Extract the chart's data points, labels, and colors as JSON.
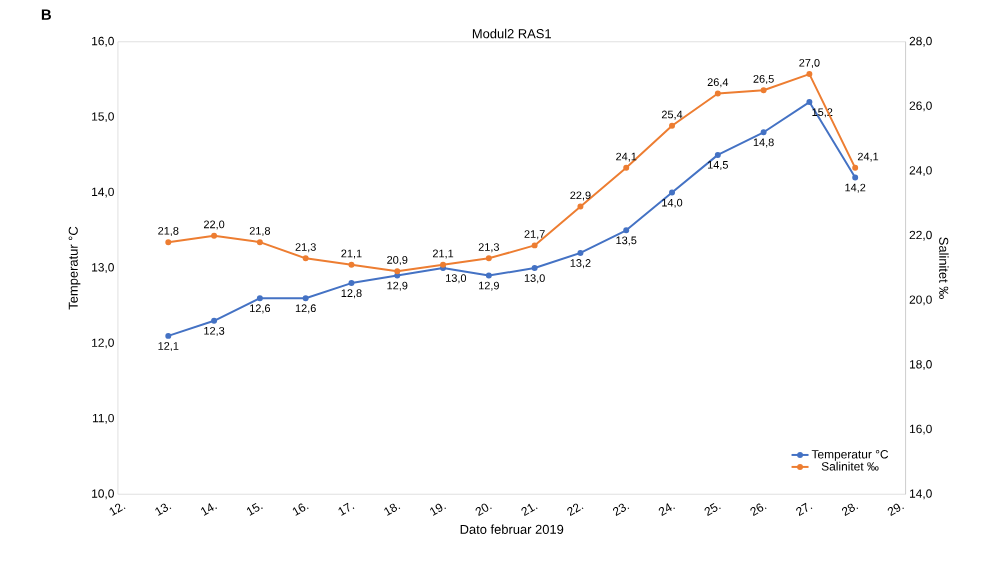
{
  "chart_data": {
    "type": "line",
    "title": "Modul2 RAS1",
    "xlabel": "Dato februar 2019",
    "ylabel": "Temperatur °C",
    "y2label": "Salinitet ‰",
    "annotations": [
      "B"
    ],
    "categories": [
      "12.",
      "13.",
      "14.",
      "15.",
      "16.",
      "17.",
      "18.",
      "19.",
      "20.",
      "21.",
      "22.",
      "23.",
      "24.",
      "25.",
      "26.",
      "27.",
      "28.",
      "29."
    ],
    "series": [
      {
        "name": "Temperatur °C",
        "color": "#4472c4",
        "values": [
          null,
          12.1,
          12.3,
          12.6,
          12.6,
          12.8,
          12.9,
          13.0,
          12.9,
          13.0,
          13.2,
          13.5,
          14.0,
          14.5,
          14.8,
          15.2,
          14.2,
          null
        ],
        "value_labels": [
          null,
          "12,1",
          "12,3",
          "12,6",
          "12,6",
          "12,8",
          "12,9",
          "13,0",
          "12,9",
          "13,0",
          "13,2",
          "13,5",
          "14,0",
          "14,5",
          "14,8",
          "15,2",
          "14,2",
          null
        ]
      },
      {
        "name": "Salinitet ‰",
        "color": "#ed7d31",
        "axis": "y2",
        "values": [
          null,
          21.8,
          22.0,
          21.8,
          21.3,
          21.1,
          20.9,
          21.1,
          21.3,
          21.7,
          22.9,
          24.1,
          25.4,
          26.4,
          26.5,
          27.0,
          24.1,
          null
        ],
        "value_labels": [
          null,
          "21,8",
          "22,0",
          "21,8",
          "21,3",
          "21,1",
          "20,9",
          "21,1",
          "21,3",
          "21,7",
          "22,9",
          "24,1",
          "25,4",
          "26,4",
          "26,5",
          "27,0",
          "24,1",
          null
        ]
      }
    ],
    "ylim": [
      10,
      16
    ],
    "yticks": [
      {
        "value": 10,
        "label": "10,0"
      },
      {
        "value": 11,
        "label": "11,0"
      },
      {
        "value": 12,
        "label": "12,0"
      },
      {
        "value": 13,
        "label": "13,0"
      },
      {
        "value": 14,
        "label": "14,0"
      },
      {
        "value": 15,
        "label": "15,0"
      },
      {
        "value": 16,
        "label": "16,0"
      }
    ],
    "y2lim": [
      14,
      28
    ],
    "y2ticks": [
      {
        "value": 14,
        "label": "14,0"
      },
      {
        "value": 16,
        "label": "16,0"
      },
      {
        "value": 18,
        "label": "18,0"
      },
      {
        "value": 20,
        "label": "20,0"
      },
      {
        "value": 22,
        "label": "22,0"
      },
      {
        "value": 24,
        "label": "24,0"
      },
      {
        "value": 26,
        "label": "26,0"
      },
      {
        "value": 28,
        "label": "28,0"
      }
    ],
    "legend": "bottom right",
    "marker": "circle",
    "line_style": "solid"
  }
}
